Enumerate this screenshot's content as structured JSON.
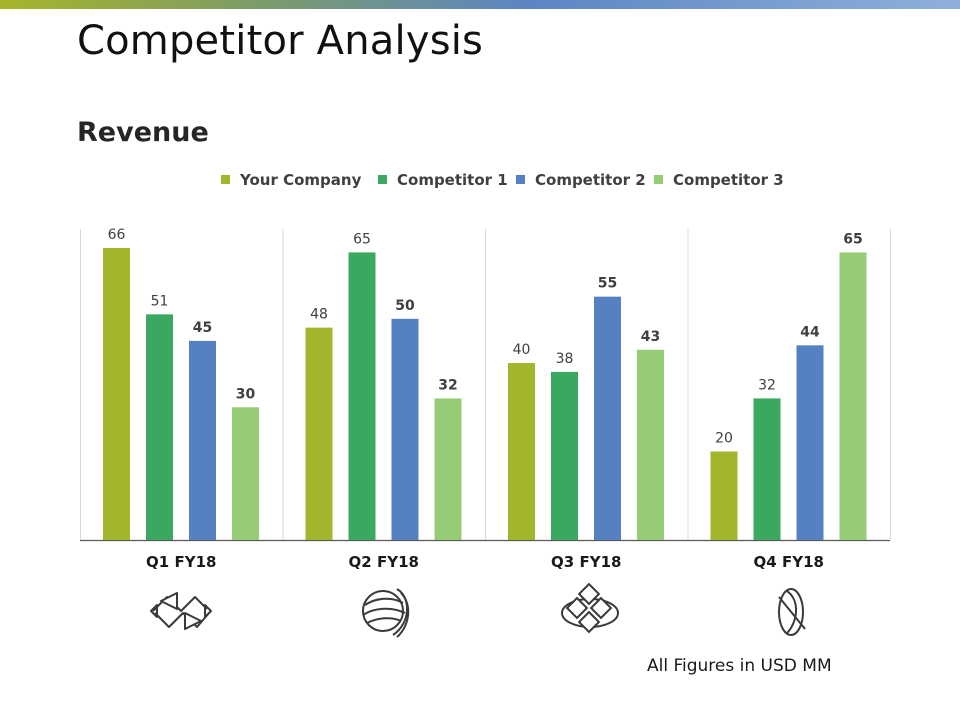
{
  "page": {
    "title": "Competitor Analysis",
    "subtitle": "Revenue",
    "footnote": "All Figures in USD MM"
  },
  "colors": {
    "your_company": "#a3b52a",
    "competitor_1": "#3aa85e",
    "competitor_2": "#5580c2",
    "competitor_3": "#95cc75"
  },
  "icons": [
    "arrows-exchange-icon",
    "globe-swirl-icon",
    "diamond-cluster-icon",
    "no-entry-leaf-icon"
  ],
  "chart_data": {
    "type": "bar",
    "title": "Revenue",
    "categories": [
      "Q1 FY18",
      "Q2 FY18",
      "Q3 FY18",
      "Q4 FY18"
    ],
    "series": [
      {
        "name": "Your Company",
        "values": [
          66,
          48,
          40,
          20
        ],
        "bold": [
          false,
          false,
          false,
          false
        ]
      },
      {
        "name": "Competitor 1",
        "values": [
          51,
          65,
          38,
          32
        ],
        "bold": [
          false,
          false,
          false,
          false
        ]
      },
      {
        "name": "Competitor 2",
        "values": [
          45,
          50,
          55,
          44
        ],
        "bold": [
          true,
          true,
          true,
          true
        ]
      },
      {
        "name": "Competitor 3",
        "values": [
          30,
          32,
          43,
          65
        ],
        "bold": [
          true,
          true,
          true,
          true
        ]
      }
    ],
    "ylim": [
      0,
      70
    ],
    "grid": false,
    "legend": "top-center",
    "xlabel": "",
    "ylabel": ""
  }
}
